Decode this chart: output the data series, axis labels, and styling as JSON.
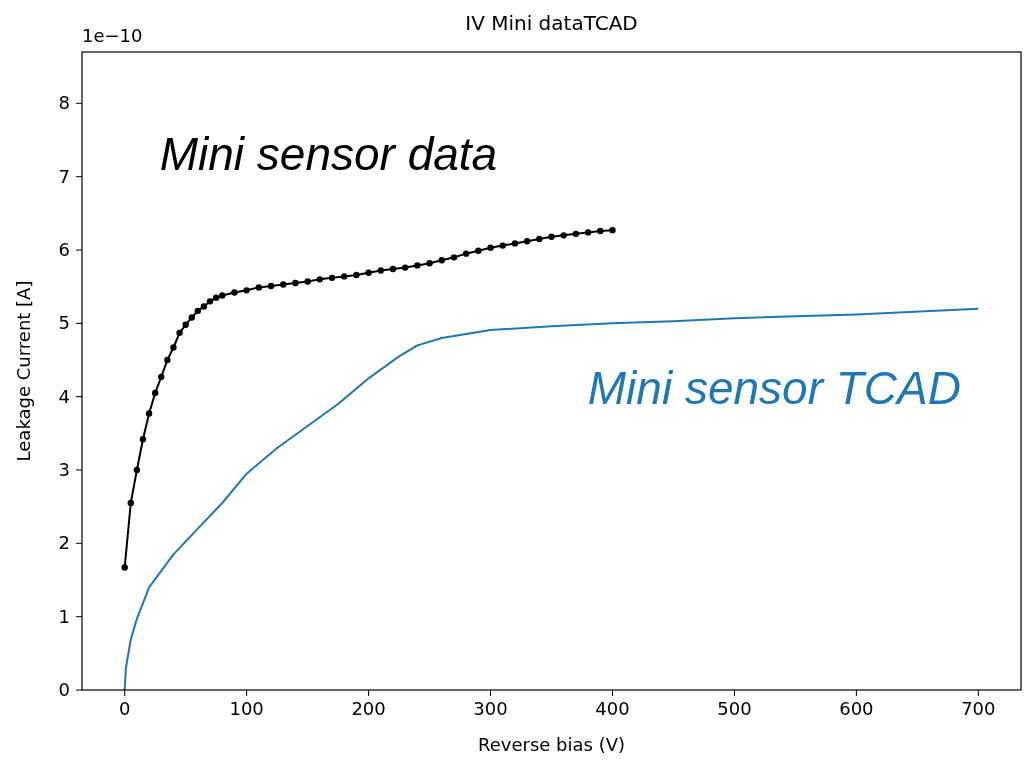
{
  "chart_data": {
    "type": "line",
    "title": "IV Mini dataTCAD",
    "xlabel": "Reverse bias (V)",
    "ylabel": "Leakage Current [A]",
    "annotations": [
      "1e−10"
    ],
    "xlim": [
      -35,
      735
    ],
    "xticks": [
      0,
      100,
      200,
      300,
      400,
      500,
      600,
      700
    ],
    "ylim": [
      0,
      8.7
    ],
    "yticks": [
      0,
      1,
      2,
      3,
      4,
      5,
      6,
      7,
      8
    ],
    "grid": false,
    "legend": false,
    "series": [
      {
        "name": "Mini sensor data",
        "color": "#000000",
        "marker": "circle",
        "x": [
          0,
          5,
          10,
          15,
          20,
          25,
          30,
          35,
          40,
          45,
          50,
          55,
          60,
          65,
          70,
          75,
          80,
          90,
          100,
          110,
          120,
          130,
          140,
          150,
          160,
          170,
          180,
          190,
          200,
          210,
          220,
          230,
          240,
          250,
          260,
          270,
          280,
          290,
          300,
          310,
          320,
          330,
          340,
          350,
          360,
          370,
          380,
          390,
          400
        ],
        "values": [
          1.67,
          2.55,
          3.0,
          3.42,
          3.77,
          4.05,
          4.27,
          4.5,
          4.67,
          4.87,
          4.98,
          5.08,
          5.17,
          5.23,
          5.3,
          5.35,
          5.38,
          5.42,
          5.45,
          5.49,
          5.51,
          5.53,
          5.55,
          5.57,
          5.6,
          5.62,
          5.64,
          5.66,
          5.69,
          5.72,
          5.74,
          5.76,
          5.79,
          5.82,
          5.86,
          5.9,
          5.95,
          5.99,
          6.03,
          6.06,
          6.09,
          6.12,
          6.15,
          6.18,
          6.2,
          6.22,
          6.24,
          6.26,
          6.27
        ]
      },
      {
        "name": "Mini sensor TCAD",
        "color": "#1f77b4",
        "marker": "none",
        "x": [
          0,
          1,
          5,
          10,
          20,
          40,
          60,
          80,
          100,
          125,
          150,
          175,
          200,
          225,
          240,
          260,
          300,
          350,
          400,
          450,
          500,
          600,
          700
        ],
        "values": [
          0,
          0.3,
          0.69,
          0.97,
          1.4,
          1.85,
          2.2,
          2.55,
          2.95,
          3.3,
          3.6,
          3.9,
          4.25,
          4.55,
          4.7,
          4.8,
          4.91,
          4.96,
          5.0,
          5.03,
          5.07,
          5.12,
          5.2
        ]
      }
    ]
  }
}
